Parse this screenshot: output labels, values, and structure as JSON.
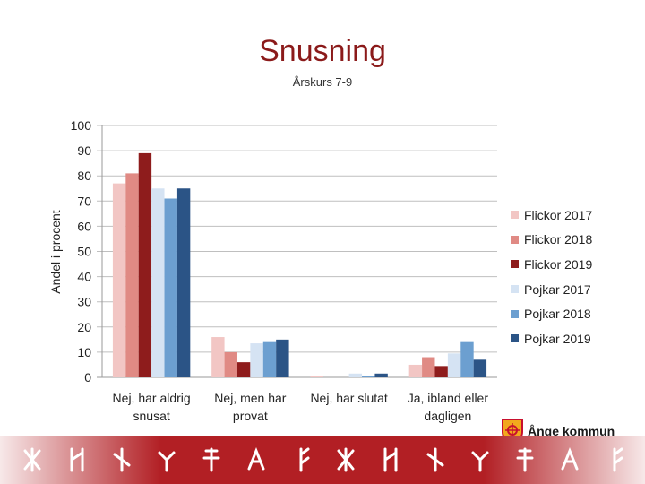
{
  "chart_data": {
    "type": "bar",
    "title": "Snusning",
    "subtitle": "Årskurs 7-9",
    "ylabel": "Andel i procent",
    "xlabel": "",
    "ylim": [
      0,
      100
    ],
    "yticks": [
      0,
      10,
      20,
      30,
      40,
      50,
      60,
      70,
      80,
      90,
      100
    ],
    "grid": true,
    "legend_position": "right",
    "categories": [
      [
        "Nej, har aldrig",
        "snusat"
      ],
      [
        "Nej, men har",
        "provat"
      ],
      [
        "Nej, har slutat"
      ],
      [
        "Ja, ibland eller",
        "dagligen"
      ]
    ],
    "series": [
      {
        "name": "Flickor 2017",
        "color": "#f2c6c4",
        "values": [
          77,
          16,
          0.5,
          5
        ]
      },
      {
        "name": "Flickor 2018",
        "color": "#e08a84",
        "values": [
          81,
          10,
          0,
          8
        ]
      },
      {
        "name": "Flickor 2019",
        "color": "#8e1c1c",
        "values": [
          89,
          6,
          0,
          4.5
        ]
      },
      {
        "name": "Pojkar 2017",
        "color": "#d5e3f3",
        "values": [
          75,
          13.5,
          1.5,
          9.5
        ]
      },
      {
        "name": "Pojkar 2018",
        "color": "#6c9fd0",
        "values": [
          71,
          14,
          0.5,
          14
        ]
      },
      {
        "name": "Pojkar 2019",
        "color": "#2b5486",
        "values": [
          75,
          15,
          1.5,
          7
        ]
      }
    ]
  },
  "logo": {
    "text": "Ånge kommun",
    "icon": "coat-of-arms-icon"
  },
  "footer": {
    "icon": "rune-pattern-icon",
    "color": "#b21f24"
  }
}
